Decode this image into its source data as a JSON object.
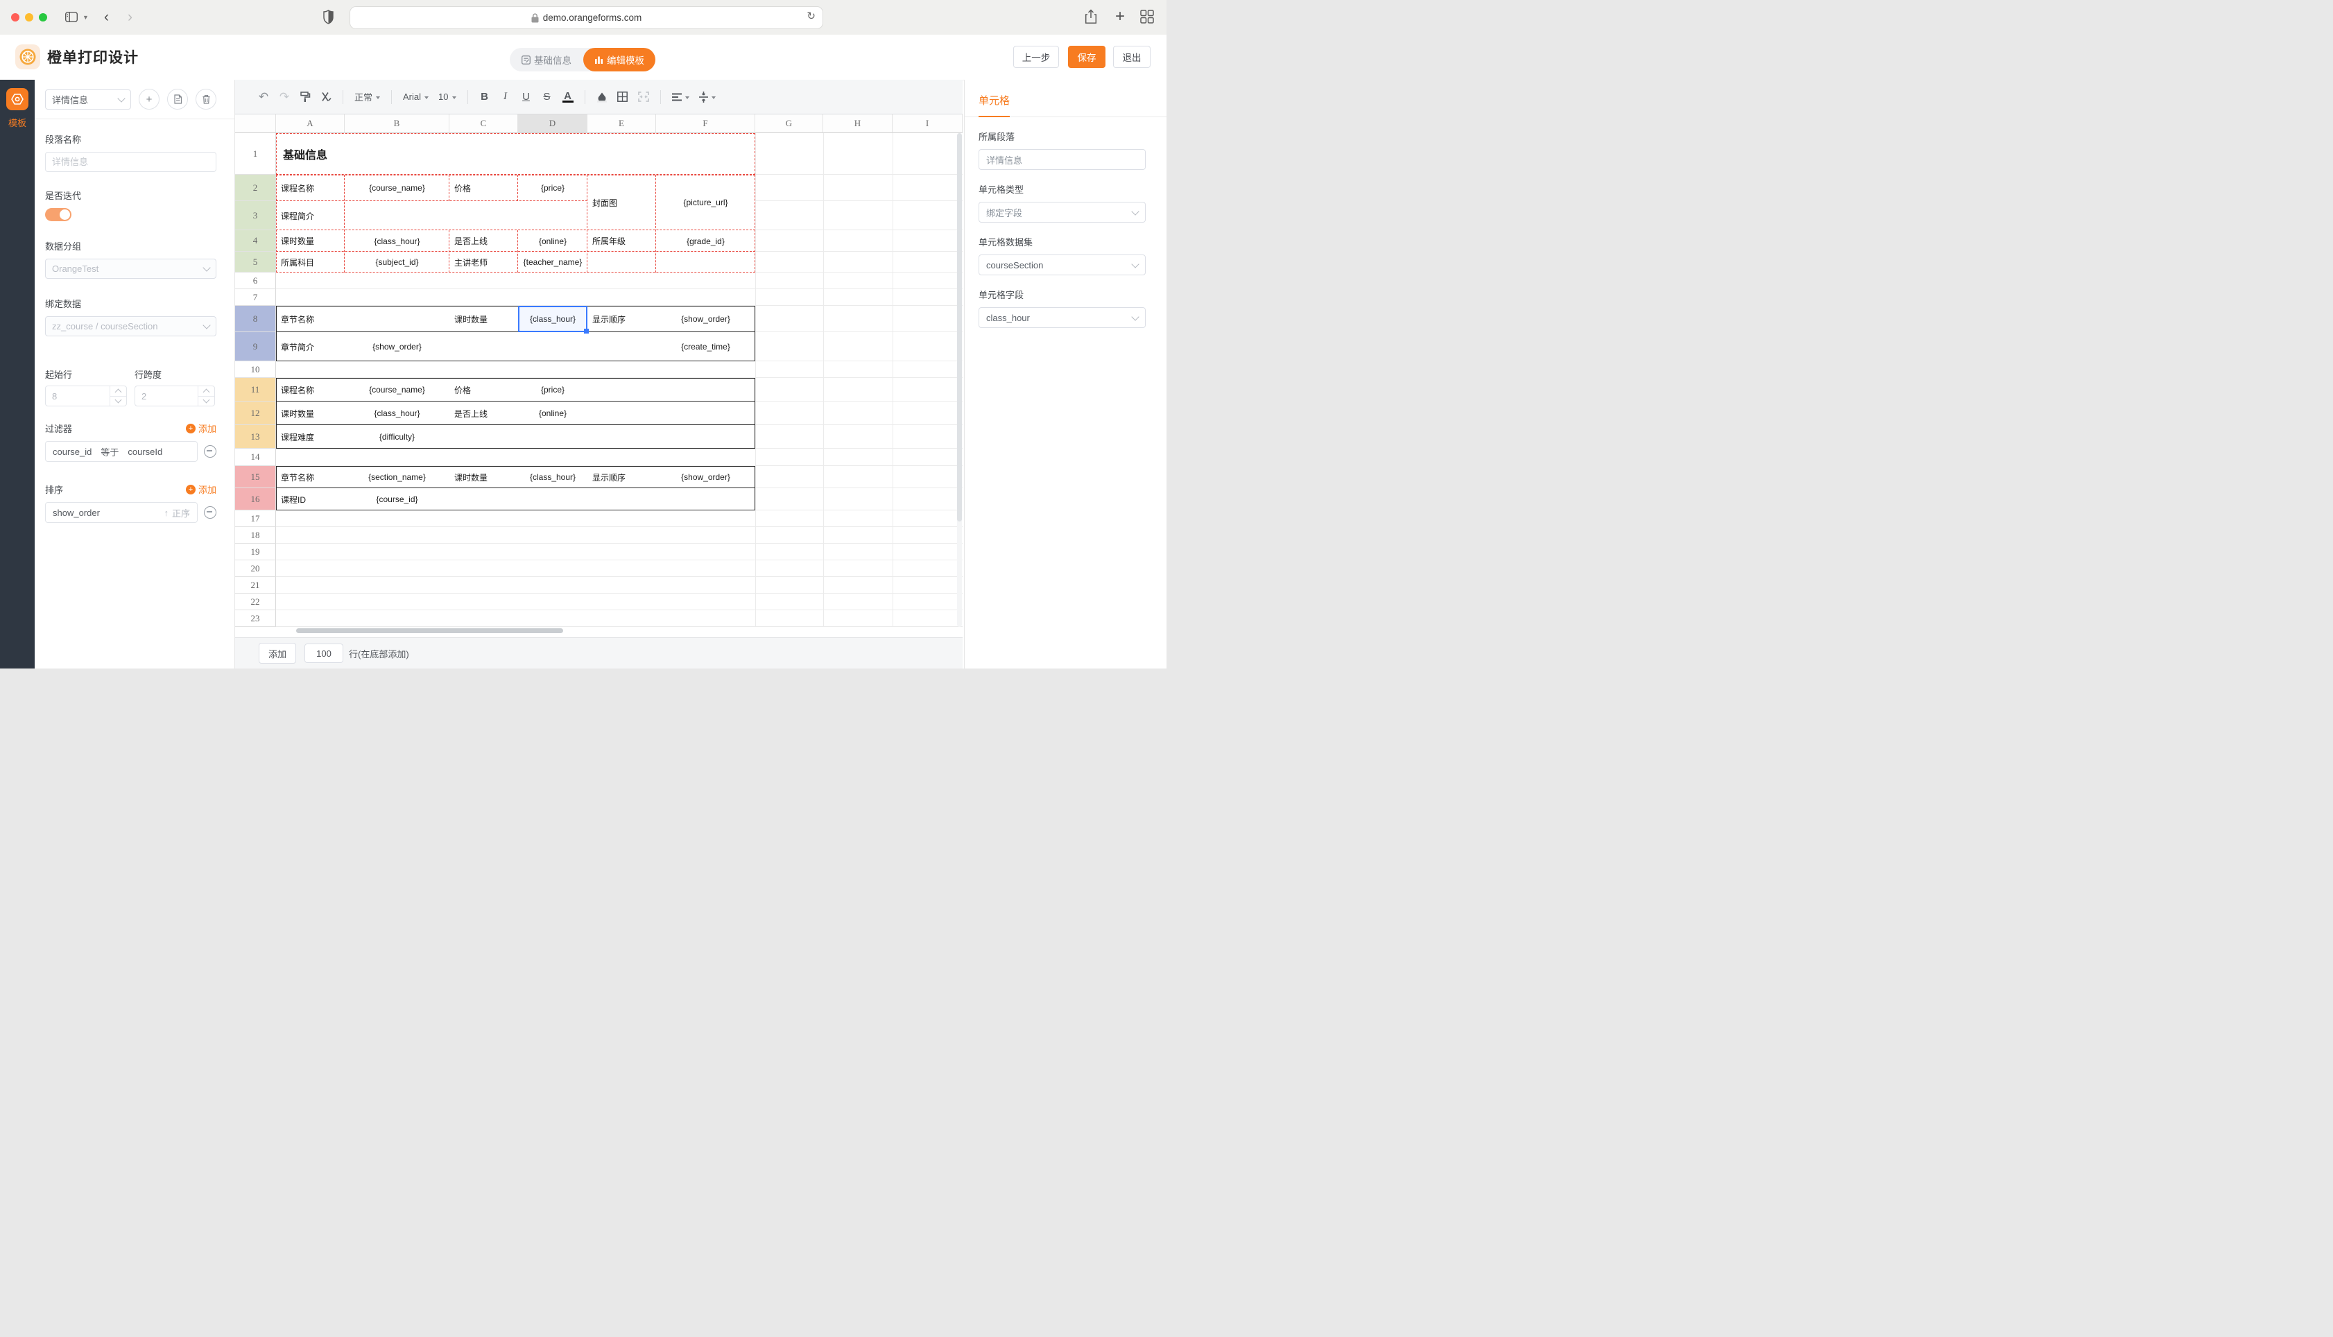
{
  "browser": {
    "url": "demo.orangeforms.com"
  },
  "app_header": {
    "title": "橙单打印设计",
    "seg_tabs": [
      {
        "label": "基础信息",
        "active": false
      },
      {
        "label": "编辑模板",
        "active": true
      }
    ],
    "actions": {
      "prev": "上一步",
      "save": "保存",
      "quit": "退出"
    }
  },
  "rail": {
    "template": "模板"
  },
  "left_panel": {
    "section_select_value": "详情信息",
    "paragraph_name": {
      "label": "段落名称",
      "placeholder": "详情信息"
    },
    "iterate": {
      "label": "是否迭代",
      "on": true
    },
    "data_group": {
      "label": "数据分组",
      "value": "OrangeTest"
    },
    "bind_data": {
      "label": "绑定数据",
      "value": "zz_course / courseSection"
    },
    "start_row": {
      "label": "起始行",
      "value": "8"
    },
    "row_span": {
      "label": "行跨度",
      "value": "2"
    },
    "filters": {
      "label": "过滤器",
      "add": "添加",
      "items": [
        {
          "field": "course_id",
          "op": "等于",
          "value": "courseId"
        }
      ]
    },
    "sorts": {
      "label": "排序",
      "add": "添加",
      "items": [
        {
          "field": "show_order",
          "dir": "正序"
        }
      ]
    }
  },
  "toolbar": {
    "format": "正常",
    "font": "Arial",
    "font_size": "10"
  },
  "grid": {
    "columns": [
      "A",
      "B",
      "C",
      "D",
      "E",
      "F",
      "G",
      "H",
      "I"
    ],
    "highlighted_column": "D",
    "visible_rows": 23,
    "row_groups": [
      {
        "from": 2,
        "to": 5,
        "color": "#d9e5cb"
      },
      {
        "from": 8,
        "to": 9,
        "color": "#aeb9dc"
      },
      {
        "from": 11,
        "to": 13,
        "color": "#f8dba4"
      },
      {
        "from": 15,
        "to": 16,
        "color": "#f3b1b3"
      }
    ],
    "selected_cell": {
      "row": 8,
      "col": "D"
    },
    "cells": [
      {
        "r": 1,
        "c": "A",
        "sp": "F",
        "t": "基础信息",
        "a": "l",
        "cls": "title"
      },
      {
        "r": 2,
        "c": "A",
        "t": "课程名称",
        "a": "l"
      },
      {
        "r": 2,
        "c": "B",
        "t": "{course_name}",
        "a": "c"
      },
      {
        "r": 2,
        "c": "C",
        "t": "价格",
        "a": "l"
      },
      {
        "r": 2,
        "c": "D",
        "t": "{price}",
        "a": "c"
      },
      {
        "r": 2,
        "c": "E",
        "t": "封面图",
        "a": "l",
        "rs": 2
      },
      {
        "r": 2,
        "c": "F",
        "t": "{picture_url}",
        "a": "c",
        "rs": 2
      },
      {
        "r": 3,
        "c": "A",
        "t": "课程简介",
        "a": "l"
      },
      {
        "r": 4,
        "c": "A",
        "t": "课时数量",
        "a": "l"
      },
      {
        "r": 4,
        "c": "B",
        "t": "{class_hour}",
        "a": "c"
      },
      {
        "r": 4,
        "c": "C",
        "t": "是否上线",
        "a": "l"
      },
      {
        "r": 4,
        "c": "D",
        "t": "{online}",
        "a": "c"
      },
      {
        "r": 4,
        "c": "E",
        "t": "所属年级",
        "a": "l"
      },
      {
        "r": 4,
        "c": "F",
        "t": "{grade_id}",
        "a": "c"
      },
      {
        "r": 5,
        "c": "A",
        "t": "所属科目",
        "a": "l"
      },
      {
        "r": 5,
        "c": "B",
        "t": "{subject_id}",
        "a": "c"
      },
      {
        "r": 5,
        "c": "C",
        "t": "主讲老师",
        "a": "l"
      },
      {
        "r": 5,
        "c": "D",
        "t": "{teacher_name}",
        "a": "c"
      },
      {
        "r": 8,
        "c": "A",
        "t": "章节名称",
        "a": "l"
      },
      {
        "r": 8,
        "c": "C",
        "t": "课时数量",
        "a": "l"
      },
      {
        "r": 8,
        "c": "D",
        "t": "{class_hour}",
        "a": "c"
      },
      {
        "r": 8,
        "c": "E",
        "t": "显示顺序",
        "a": "l"
      },
      {
        "r": 8,
        "c": "F",
        "t": "{show_order}",
        "a": "c"
      },
      {
        "r": 9,
        "c": "A",
        "t": "章节简介",
        "a": "l"
      },
      {
        "r": 9,
        "c": "B",
        "t": "{show_order}",
        "a": "c"
      },
      {
        "r": 9,
        "c": "F",
        "t": "{create_time}",
        "a": "c"
      },
      {
        "r": 11,
        "c": "A",
        "t": "课程名称",
        "a": "l"
      },
      {
        "r": 11,
        "c": "B",
        "t": "{course_name}",
        "a": "c"
      },
      {
        "r": 11,
        "c": "C",
        "t": "价格",
        "a": "l"
      },
      {
        "r": 11,
        "c": "D",
        "t": "{price}",
        "a": "c"
      },
      {
        "r": 12,
        "c": "A",
        "t": "课时数量",
        "a": "l"
      },
      {
        "r": 12,
        "c": "B",
        "t": "{class_hour}",
        "a": "c"
      },
      {
        "r": 12,
        "c": "C",
        "t": "是否上线",
        "a": "l"
      },
      {
        "r": 12,
        "c": "D",
        "t": "{online}",
        "a": "c"
      },
      {
        "r": 13,
        "c": "A",
        "t": "课程难度",
        "a": "l"
      },
      {
        "r": 13,
        "c": "B",
        "t": "{difficulty}",
        "a": "c"
      },
      {
        "r": 15,
        "c": "A",
        "t": "章节名称",
        "a": "l"
      },
      {
        "r": 15,
        "c": "B",
        "t": "{section_name}",
        "a": "c"
      },
      {
        "r": 15,
        "c": "C",
        "t": "课时数量",
        "a": "l"
      },
      {
        "r": 15,
        "c": "D",
        "t": "{class_hour}",
        "a": "c"
      },
      {
        "r": 15,
        "c": "E",
        "t": "显示顺序",
        "a": "l"
      },
      {
        "r": 15,
        "c": "F",
        "t": "{show_order}",
        "a": "c"
      },
      {
        "r": 16,
        "c": "A",
        "t": "课程ID",
        "a": "l"
      },
      {
        "r": 16,
        "c": "B",
        "t": "{course_id}",
        "a": "c"
      }
    ]
  },
  "sheet_footer": {
    "add": "添加",
    "count": "100",
    "suffix": "行(在底部添加)"
  },
  "right_panel": {
    "tab": "单元格",
    "paragraph": {
      "label": "所属段落",
      "value": "详情信息"
    },
    "cell_type": {
      "label": "单元格类型",
      "value": "绑定字段"
    },
    "cell_dataset": {
      "label": "单元格数据集",
      "value": "courseSection"
    },
    "cell_field": {
      "label": "单元格字段",
      "value": "class_hour"
    }
  },
  "colors": {
    "accent": "#f77c21",
    "selection": "#3a7afe",
    "dashed_border": "#e8483f"
  }
}
